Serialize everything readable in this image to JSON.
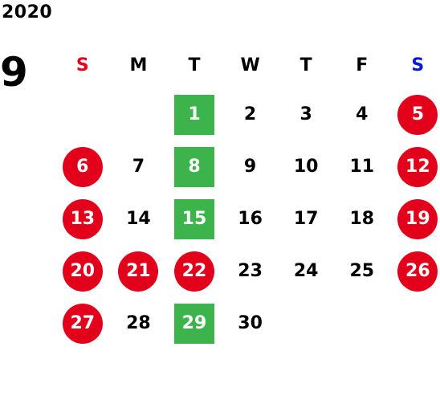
{
  "calendar": {
    "year": "2020",
    "month": "9",
    "weekdays": [
      "S",
      "M",
      "T",
      "W",
      "T",
      "F",
      "S"
    ],
    "colors": {
      "sunday_header": "#e8001c",
      "saturday_header": "#0018e0",
      "holiday_circle": "#e3001b",
      "event_square": "#3cb44b"
    },
    "weeks": [
      [
        {
          "label": "",
          "type": "empty"
        },
        {
          "label": "",
          "type": "empty"
        },
        {
          "label": "1",
          "type": "event"
        },
        {
          "label": "2",
          "type": "normal"
        },
        {
          "label": "3",
          "type": "normal"
        },
        {
          "label": "4",
          "type": "normal"
        },
        {
          "label": "5",
          "type": "holiday"
        }
      ],
      [
        {
          "label": "6",
          "type": "holiday"
        },
        {
          "label": "7",
          "type": "normal"
        },
        {
          "label": "8",
          "type": "event"
        },
        {
          "label": "9",
          "type": "normal"
        },
        {
          "label": "10",
          "type": "normal"
        },
        {
          "label": "11",
          "type": "normal"
        },
        {
          "label": "12",
          "type": "holiday"
        }
      ],
      [
        {
          "label": "13",
          "type": "holiday"
        },
        {
          "label": "14",
          "type": "normal"
        },
        {
          "label": "15",
          "type": "event"
        },
        {
          "label": "16",
          "type": "normal"
        },
        {
          "label": "17",
          "type": "normal"
        },
        {
          "label": "18",
          "type": "normal"
        },
        {
          "label": "19",
          "type": "holiday"
        }
      ],
      [
        {
          "label": "20",
          "type": "holiday"
        },
        {
          "label": "21",
          "type": "holiday"
        },
        {
          "label": "22",
          "type": "holiday"
        },
        {
          "label": "23",
          "type": "normal"
        },
        {
          "label": "24",
          "type": "normal"
        },
        {
          "label": "25",
          "type": "normal"
        },
        {
          "label": "26",
          "type": "holiday"
        }
      ],
      [
        {
          "label": "27",
          "type": "holiday"
        },
        {
          "label": "28",
          "type": "normal"
        },
        {
          "label": "29",
          "type": "event"
        },
        {
          "label": "30",
          "type": "normal"
        },
        {
          "label": "",
          "type": "empty"
        },
        {
          "label": "",
          "type": "empty"
        },
        {
          "label": "",
          "type": "empty"
        }
      ]
    ]
  }
}
